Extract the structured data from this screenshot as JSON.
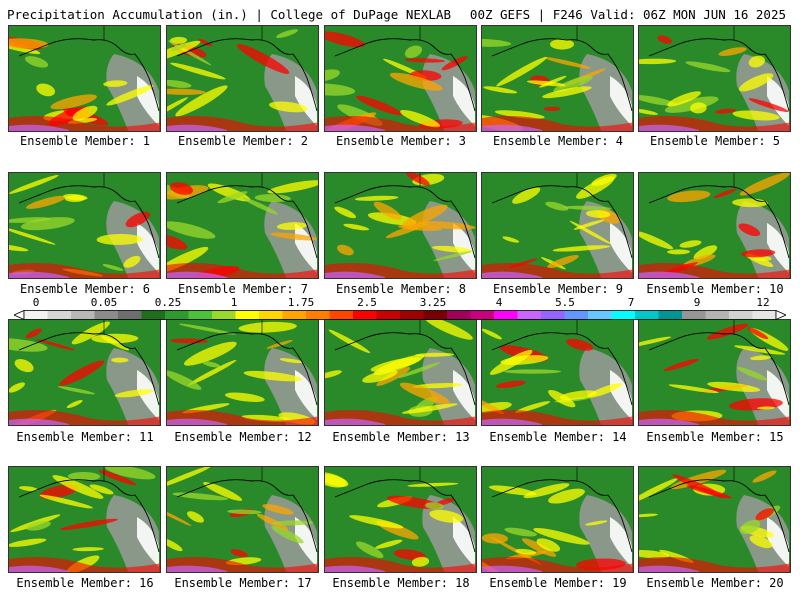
{
  "header": {
    "left": "Precipitation Accumulation (in.) | College of DuPage NEXLAB",
    "right": "00Z GEFS | F246 Valid: 06Z MON JUN 16 2025"
  },
  "members": [
    "Ensemble Member: 1",
    "Ensemble Member: 2",
    "Ensemble Member: 3",
    "Ensemble Member: 4",
    "Ensemble Member: 5",
    "Ensemble Member: 6",
    "Ensemble Member: 7",
    "Ensemble Member: 8",
    "Ensemble Member: 9",
    "Ensemble Member: 10",
    "Ensemble Member: 11",
    "Ensemble Member: 12",
    "Ensemble Member: 13",
    "Ensemble Member: 14",
    "Ensemble Member: 15",
    "Ensemble Member: 16",
    "Ensemble Member: 17",
    "Ensemble Member: 18",
    "Ensemble Member: 19",
    "Ensemble Member: 20"
  ],
  "colorbar": {
    "labels": [
      "0",
      "0.05",
      "0.25",
      "1",
      "1.75",
      "2.5",
      "3.25",
      "4",
      "5.5",
      "7",
      "9",
      "12"
    ],
    "colors": [
      "#f2f2f2",
      "#d6d6d6",
      "#b8b8b8",
      "#8c8c8c",
      "#6e6e6e",
      "#1e6e1e",
      "#2e9a2e",
      "#4cc23c",
      "#9ad82a",
      "#ffff00",
      "#ffd700",
      "#ffa500",
      "#ff7f00",
      "#ff4500",
      "#ff0000",
      "#c80000",
      "#a00000",
      "#780000",
      "#a0005a",
      "#c8007d",
      "#ff00ff",
      "#c864ff",
      "#9664ff",
      "#6496ff",
      "#64c8ff",
      "#00ffff",
      "#00c8c8",
      "#009696",
      "#969696",
      "#b4b4b4",
      "#d2d2d2",
      "#e6e6e6"
    ]
  },
  "palette": {
    "green": "#2a8a2a",
    "dark_green": "#1e6e1e",
    "yellow": "#ffff00",
    "orange": "#ffa500",
    "red": "#ff0000",
    "gray": "#b0b0b0",
    "white": "#ffffff",
    "purple": "#c864ff"
  }
}
